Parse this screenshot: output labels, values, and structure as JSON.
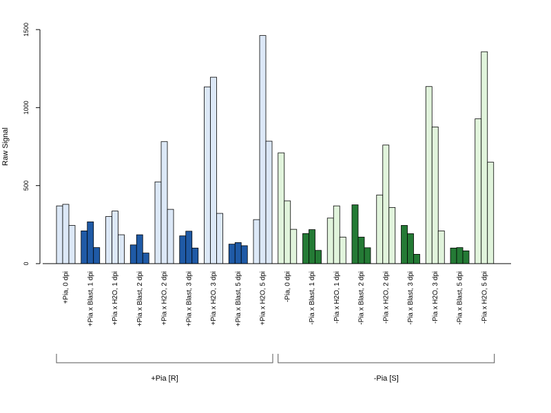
{
  "chart_data": {
    "type": "bar",
    "ylabel": "Raw Signal",
    "ylim": [
      0,
      1500
    ],
    "yticks": [
      0,
      500,
      1000,
      1500
    ],
    "groups": [
      {
        "label": "+Pia, 0 dpi",
        "values": [
          370,
          380,
          245
        ],
        "style": "light-blue"
      },
      {
        "label": "+Pia x Blast, 1 dpi",
        "values": [
          210,
          268,
          103
        ],
        "style": "dark-blue"
      },
      {
        "label": "+Pia x H2O, 1 dpi",
        "values": [
          302,
          337,
          185
        ],
        "style": "light-blue"
      },
      {
        "label": "+Pia x Blast, 2 dpi",
        "values": [
          120,
          185,
          68
        ],
        "style": "dark-blue"
      },
      {
        "label": "+Pia x H2O, 2 dpi",
        "values": [
          524,
          782,
          348
        ],
        "style": "light-blue"
      },
      {
        "label": "+Pia x Blast, 3 dpi",
        "values": [
          178,
          208,
          100
        ],
        "style": "dark-blue"
      },
      {
        "label": "+Pia x H2O, 3 dpi",
        "values": [
          1133,
          1195,
          322
        ],
        "style": "light-blue"
      },
      {
        "label": "+Pia x Blast, 5 dpi",
        "values": [
          125,
          135,
          115
        ],
        "style": "dark-blue"
      },
      {
        "label": "+Pia x H2O, 5 dpi",
        "values": [
          282,
          1462,
          785
        ],
        "style": "light-blue"
      },
      {
        "label": "-Pia, 0 dpi",
        "values": [
          710,
          402,
          220
        ],
        "style": "light-green"
      },
      {
        "label": "-Pia x Blast, 1 dpi",
        "values": [
          193,
          218,
          85
        ],
        "style": "dark-green"
      },
      {
        "label": "-Pia x H2O, 1 dpi",
        "values": [
          292,
          370,
          170
        ],
        "style": "light-green"
      },
      {
        "label": "-Pia x Blast, 2 dpi",
        "values": [
          377,
          170,
          102
        ],
        "style": "dark-green"
      },
      {
        "label": "-Pia x H2O, 2 dpi",
        "values": [
          440,
          760,
          360
        ],
        "style": "light-green"
      },
      {
        "label": "-Pia x Blast, 3 dpi",
        "values": [
          245,
          192,
          60
        ],
        "style": "dark-green"
      },
      {
        "label": "-Pia x H2O, 3 dpi",
        "values": [
          1135,
          876,
          210
        ],
        "style": "light-green"
      },
      {
        "label": "-Pia x Blast, 5 dpi",
        "values": [
          100,
          103,
          82
        ],
        "style": "dark-green"
      },
      {
        "label": "-Pia x H2O, 5 dpi",
        "values": [
          928,
          1358,
          650
        ],
        "style": "light-green"
      }
    ],
    "brackets": [
      {
        "label": "+Pia [R]",
        "from_group": 0,
        "to_group": 8
      },
      {
        "label": "-Pia [S]",
        "from_group": 9,
        "to_group": 17
      }
    ],
    "colors": {
      "light-blue": "#dce8f7",
      "dark-blue": "#1f5aa6",
      "light-green": "#e1f4dc",
      "dark-green": "#247a35",
      "stroke": "#000000"
    }
  }
}
